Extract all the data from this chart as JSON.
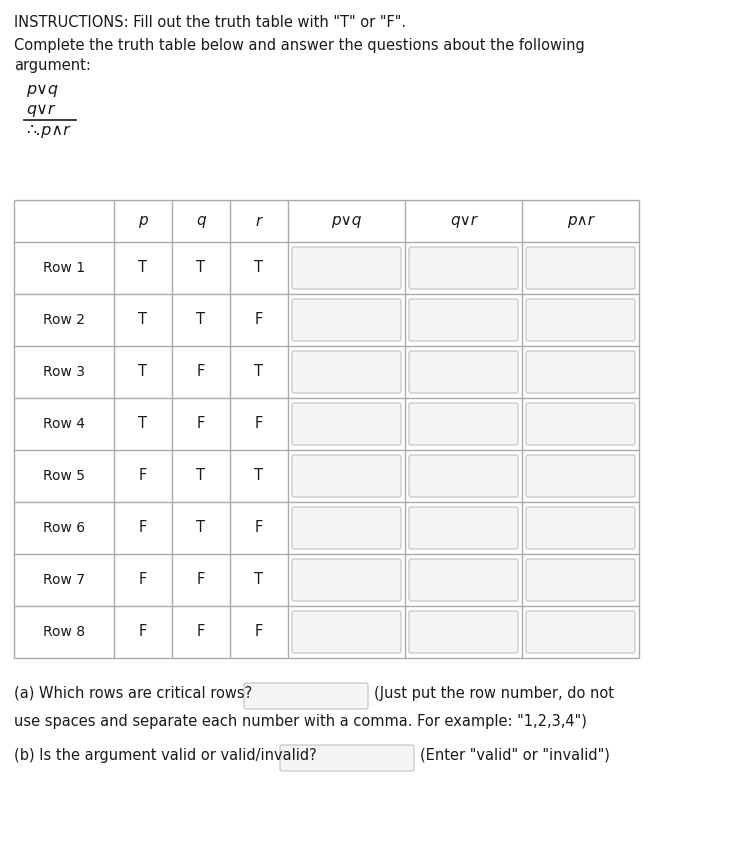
{
  "title_line1": "INSTRUCTIONS: Fill out the truth table with \"T\" or \"F\".",
  "title_line2": "Complete the truth table below and answer the questions about the following",
  "title_line3": "argument:",
  "arg_line1": "p∨q",
  "arg_line2": "q∨r",
  "arg_line3": "∴.p∧r",
  "col_headers": [
    "",
    "p",
    "q",
    "r",
    "p∨q",
    "q∨r",
    "p∧r"
  ],
  "rows": [
    {
      "label": "Row 1",
      "p": "T",
      "q": "T",
      "r": "T"
    },
    {
      "label": "Row 2",
      "p": "T",
      "q": "T",
      "r": "F"
    },
    {
      "label": "Row 3",
      "p": "T",
      "q": "F",
      "r": "T"
    },
    {
      "label": "Row 4",
      "p": "T",
      "q": "F",
      "r": "F"
    },
    {
      "label": "Row 5",
      "p": "F",
      "q": "T",
      "r": "T"
    },
    {
      "label": "Row 6",
      "p": "F",
      "q": "T",
      "r": "F"
    },
    {
      "label": "Row 7",
      "p": "F",
      "q": "F",
      "r": "T"
    },
    {
      "label": "Row 8",
      "p": "F",
      "q": "F",
      "r": "F"
    }
  ],
  "question_a_prefix": "(a) Which rows are critical rows?",
  "question_a_suffix": "(Just put the row number, do not",
  "question_a_line2": "use spaces and separate each number with a comma. For example: \"1,2,3,4\")",
  "question_b_prefix": "(b) Is the argument valid or valid/invalid?",
  "question_b_suffix": "(Enter \"valid\" or \"invalid\")",
  "bg_color": "#ffffff",
  "text_color": "#1a1a1a",
  "grid_color": "#aaaaaa",
  "input_box_color": "#f5f5f5",
  "input_box_border": "#c0c0c0",
  "fig_width": 7.37,
  "fig_height": 8.44,
  "dpi": 100
}
